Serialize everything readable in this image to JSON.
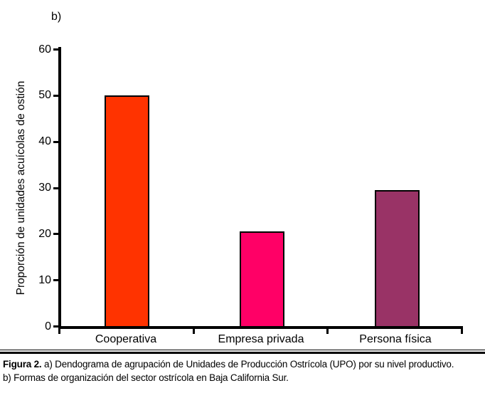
{
  "panel_label": "b)",
  "chart_data": {
    "type": "bar",
    "categories": [
      "Cooperativa",
      "Empresa privada",
      "Persona física"
    ],
    "values": [
      50,
      20.5,
      29.5
    ],
    "bar_colors": [
      "#ff3300",
      "#ff0066",
      "#993366"
    ],
    "bar_border_color": "#000000",
    "axis_color": "#000000",
    "title": "",
    "xlabel": "",
    "ylabel": "Proporción de unidades acuícolas de ostión",
    "ylim": [
      0,
      60
    ],
    "yticks": [
      0,
      10,
      20,
      30,
      40,
      50,
      60
    ],
    "grid": false,
    "legend": "none"
  },
  "caption": {
    "bold": "Figura 2.",
    "line1_rest": " a) Dendograma de agrupación de Unidades de Producción Ostrícola (UPO) por su nivel productivo.",
    "line2": "b) Formas de organización del sector ostrícola en Baja California Sur."
  }
}
